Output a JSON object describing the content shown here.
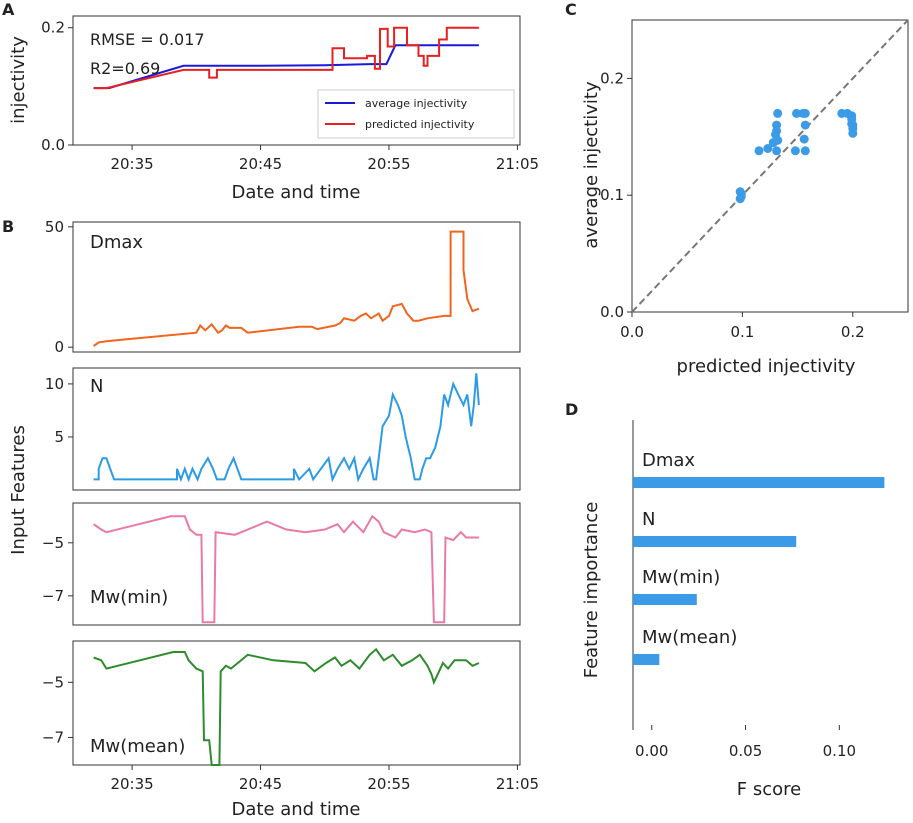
{
  "figure": {
    "panels": [
      "A",
      "B",
      "C",
      "D"
    ]
  },
  "chart_data": [
    {
      "id": "A",
      "type": "line",
      "xlabel": "Date and time",
      "ylabel": "injectivity",
      "x_ticks": [
        "20:35",
        "20:45",
        "20:55",
        "21:05"
      ],
      "xlim_minutes": [
        30.4,
        65.2
      ],
      "ylim": [
        0.0,
        0.22
      ],
      "y_ticks": [
        "0.0",
        "0.2"
      ],
      "annotations": [
        "RMSE = 0.017",
        "R2=0.69"
      ],
      "legend": [
        "average injectivity",
        "predicted injectivity"
      ],
      "series": [
        {
          "name": "average injectivity",
          "color": "#1a1adb",
          "points": [
            [
              32.0,
              0.097
            ],
            [
              33.2,
              0.097
            ],
            [
              39.0,
              0.135
            ],
            [
              45,
              0.135
            ],
            [
              50,
              0.136
            ],
            [
              53.5,
              0.138
            ],
            [
              54.8,
              0.138
            ],
            [
              55.5,
              0.17
            ],
            [
              62.0,
              0.17
            ]
          ]
        },
        {
          "name": "predicted injectivity",
          "color": "#e82020",
          "points": [
            [
              32.0,
              0.097
            ],
            [
              33.0,
              0.097
            ],
            [
              39.0,
              0.128
            ],
            [
              41.0,
              0.128
            ],
            [
              41.0,
              0.115
            ],
            [
              41.6,
              0.115
            ],
            [
              41.6,
              0.128
            ],
            [
              50.6,
              0.128
            ],
            [
              50.6,
              0.165
            ],
            [
              51.5,
              0.165
            ],
            [
              51.5,
              0.148
            ],
            [
              53.3,
              0.148
            ],
            [
              53.3,
              0.152
            ],
            [
              53.9,
              0.152
            ],
            [
              53.9,
              0.13
            ],
            [
              54.3,
              0.13
            ],
            [
              54.3,
              0.198
            ],
            [
              54.9,
              0.198
            ],
            [
              54.9,
              0.168
            ],
            [
              55.4,
              0.168
            ],
            [
              55.4,
              0.2
            ],
            [
              56.4,
              0.2
            ],
            [
              56.4,
              0.17
            ],
            [
              57.3,
              0.17
            ],
            [
              57.3,
              0.152
            ],
            [
              57.7,
              0.152
            ],
            [
              57.7,
              0.135
            ],
            [
              58.0,
              0.135
            ],
            [
              58.0,
              0.152
            ],
            [
              58.9,
              0.152
            ],
            [
              58.9,
              0.18
            ],
            [
              59.5,
              0.18
            ],
            [
              59.5,
              0.2
            ],
            [
              62.0,
              0.2
            ]
          ]
        }
      ]
    },
    {
      "id": "B",
      "type": "line",
      "xlabel": "Date and time",
      "ylabel": "Input Features",
      "x_ticks": [
        "20:35",
        "20:45",
        "20:55",
        "21:05"
      ],
      "xlim_minutes": [
        30.4,
        65.2
      ],
      "subplots": [
        {
          "name": "Dmax",
          "color": "#f0641e",
          "ylim": [
            -2,
            52
          ],
          "y_ticks": [
            "0",
            "50"
          ],
          "points": [
            [
              32.0,
              0.5
            ],
            [
              32.4,
              2
            ],
            [
              33.0,
              2.5
            ],
            [
              40.0,
              6
            ],
            [
              40.3,
              9
            ],
            [
              40.7,
              7
            ],
            [
              41.2,
              9.5
            ],
            [
              41.7,
              6
            ],
            [
              42.0,
              7
            ],
            [
              42.3,
              9
            ],
            [
              42.6,
              8
            ],
            [
              43.5,
              8
            ],
            [
              44.0,
              6
            ],
            [
              48.0,
              8.5
            ],
            [
              49.0,
              8.5
            ],
            [
              49.4,
              7.5
            ],
            [
              50.8,
              9
            ],
            [
              51.2,
              10
            ],
            [
              51.5,
              12
            ],
            [
              52.3,
              11
            ],
            [
              52.8,
              13
            ],
            [
              53.2,
              14
            ],
            [
              53.6,
              12
            ],
            [
              54.2,
              14
            ],
            [
              54.5,
              11
            ],
            [
              55.0,
              13
            ],
            [
              55.3,
              17
            ],
            [
              56.0,
              18
            ],
            [
              56.4,
              14
            ],
            [
              56.9,
              11
            ],
            [
              57.3,
              11
            ],
            [
              58.0,
              12
            ],
            [
              59.3,
              13
            ],
            [
              59.8,
              13
            ],
            [
              59.8,
              48
            ],
            [
              60.8,
              48
            ],
            [
              60.8,
              32
            ],
            [
              61.1,
              20
            ],
            [
              61.5,
              15
            ],
            [
              62.0,
              16
            ]
          ]
        },
        {
          "name": "N",
          "color": "#2c9be6",
          "ylim": [
            0,
            11.5
          ],
          "y_ticks": [
            "5",
            "10"
          ],
          "points": [
            [
              32.0,
              1
            ],
            [
              32.4,
              1
            ],
            [
              32.4,
              2
            ],
            [
              32.7,
              3
            ],
            [
              33.0,
              3
            ],
            [
              33.3,
              2
            ],
            [
              33.6,
              1
            ],
            [
              38.5,
              1
            ],
            [
              38.5,
              2
            ],
            [
              38.8,
              1
            ],
            [
              39.1,
              2
            ],
            [
              39.4,
              1
            ],
            [
              39.7,
              2
            ],
            [
              40.1,
              1
            ],
            [
              40.4,
              2
            ],
            [
              40.9,
              3
            ],
            [
              41.3,
              2
            ],
            [
              41.6,
              1
            ],
            [
              42.2,
              1
            ],
            [
              42.5,
              2
            ],
            [
              42.9,
              3
            ],
            [
              43.2,
              2
            ],
            [
              43.5,
              1
            ],
            [
              47.6,
              1
            ],
            [
              47.6,
              2
            ],
            [
              48.0,
              1
            ],
            [
              48.8,
              2
            ],
            [
              49.1,
              1
            ],
            [
              50.3,
              3
            ],
            [
              50.6,
              1
            ],
            [
              51.0,
              2
            ],
            [
              51.5,
              3
            ],
            [
              51.9,
              2
            ],
            [
              52.3,
              3
            ],
            [
              52.6,
              1
            ],
            [
              53.0,
              2
            ],
            [
              53.5,
              3
            ],
            [
              53.8,
              1
            ],
            [
              54.0,
              1
            ],
            [
              54.2,
              3
            ],
            [
              54.5,
              6
            ],
            [
              55.0,
              7
            ],
            [
              55.3,
              9
            ],
            [
              55.7,
              8
            ],
            [
              56.0,
              7
            ],
            [
              56.3,
              5
            ],
            [
              56.7,
              3
            ],
            [
              57.0,
              1
            ],
            [
              57.4,
              1
            ],
            [
              57.6,
              2
            ],
            [
              57.9,
              3
            ],
            [
              58.2,
              3
            ],
            [
              58.6,
              4
            ],
            [
              59.0,
              6
            ],
            [
              59.3,
              9
            ],
            [
              59.6,
              8
            ],
            [
              60.0,
              10
            ],
            [
              60.4,
              9
            ],
            [
              60.8,
              8
            ],
            [
              61.1,
              9
            ],
            [
              61.4,
              6
            ],
            [
              61.6,
              8
            ],
            [
              61.8,
              11
            ],
            [
              62.0,
              8
            ]
          ]
        },
        {
          "name": "Mw(min)",
          "color": "#e87aa8",
          "ylim": [
            -8.1,
            -3.5
          ],
          "y_ticks": [
            "-5",
            "-7"
          ],
          "points": [
            [
              32.0,
              -4.3
            ],
            [
              32.6,
              -4.5
            ],
            [
              33.0,
              -4.6
            ],
            [
              38.0,
              -4.0
            ],
            [
              39.1,
              -4.0
            ],
            [
              39.5,
              -4.5
            ],
            [
              40.0,
              -4.7
            ],
            [
              40.4,
              -4.7
            ],
            [
              40.5,
              -8.0
            ],
            [
              41.4,
              -8.0
            ],
            [
              41.5,
              -4.6
            ],
            [
              43.0,
              -4.7
            ],
            [
              45.5,
              -4.2
            ],
            [
              47.0,
              -4.5
            ],
            [
              48.5,
              -4.6
            ],
            [
              50.0,
              -4.5
            ],
            [
              51.0,
              -4.3
            ],
            [
              51.5,
              -4.6
            ],
            [
              52.2,
              -4.2
            ],
            [
              53.0,
              -4.6
            ],
            [
              53.7,
              -4.0
            ],
            [
              54.2,
              -4.2
            ],
            [
              54.6,
              -4.6
            ],
            [
              55.5,
              -4.8
            ],
            [
              56.0,
              -4.5
            ],
            [
              57.0,
              -4.6
            ],
            [
              57.8,
              -4.5
            ],
            [
              58.3,
              -4.6
            ],
            [
              58.5,
              -8.0
            ],
            [
              59.3,
              -8.0
            ],
            [
              59.4,
              -4.8
            ],
            [
              60.0,
              -4.9
            ],
            [
              60.6,
              -4.6
            ],
            [
              61.0,
              -4.8
            ],
            [
              62.0,
              -4.8
            ]
          ]
        },
        {
          "name": "Mw(mean)",
          "color": "#2e8b2e",
          "ylim": [
            -8.0,
            -3.5
          ],
          "y_ticks": [
            "-5",
            "-7"
          ],
          "points": [
            [
              32.0,
              -4.1
            ],
            [
              32.6,
              -4.2
            ],
            [
              33.0,
              -4.5
            ],
            [
              38.2,
              -3.9
            ],
            [
              39.1,
              -3.9
            ],
            [
              39.4,
              -4.2
            ],
            [
              40.0,
              -4.5
            ],
            [
              40.5,
              -4.6
            ],
            [
              40.6,
              -7.1
            ],
            [
              41.0,
              -7.1
            ],
            [
              41.2,
              -8.0
            ],
            [
              41.8,
              -8.0
            ],
            [
              41.9,
              -4.6
            ],
            [
              42.3,
              -4.4
            ],
            [
              42.7,
              -4.5
            ],
            [
              44.0,
              -4.0
            ],
            [
              46.0,
              -4.2
            ],
            [
              48.5,
              -4.3
            ],
            [
              49.2,
              -4.6
            ],
            [
              50.1,
              -4.3
            ],
            [
              50.8,
              -4.1
            ],
            [
              51.3,
              -4.4
            ],
            [
              52.0,
              -4.2
            ],
            [
              52.7,
              -4.5
            ],
            [
              53.5,
              -4.0
            ],
            [
              54.0,
              -3.8
            ],
            [
              54.6,
              -4.2
            ],
            [
              55.3,
              -4.0
            ],
            [
              56.0,
              -4.4
            ],
            [
              56.8,
              -4.2
            ],
            [
              57.4,
              -4.0
            ],
            [
              58.0,
              -4.4
            ],
            [
              58.3,
              -4.7
            ],
            [
              58.5,
              -5.0
            ],
            [
              58.9,
              -4.6
            ],
            [
              59.2,
              -4.3
            ],
            [
              59.6,
              -4.5
            ],
            [
              60.1,
              -4.2
            ],
            [
              61.0,
              -4.2
            ],
            [
              61.5,
              -4.4
            ],
            [
              62.0,
              -4.3
            ]
          ]
        }
      ]
    },
    {
      "id": "C",
      "type": "scatter",
      "xlabel": "predicted injectivity",
      "ylabel": "average  injectivity",
      "xlim": [
        0.0,
        0.25
      ],
      "ylim": [
        0.0,
        0.25
      ],
      "x_ticks": [
        "0.0",
        "0.1",
        "0.2"
      ],
      "y_ticks": [
        "0.0",
        "0.1",
        "0.2"
      ],
      "identity_line": true,
      "color": "#3c9be6",
      "points": [
        [
          0.098,
          0.097
        ],
        [
          0.099,
          0.099
        ],
        [
          0.099,
          0.101
        ],
        [
          0.098,
          0.103
        ],
        [
          0.115,
          0.138
        ],
        [
          0.123,
          0.14
        ],
        [
          0.128,
          0.145
        ],
        [
          0.13,
          0.152
        ],
        [
          0.132,
          0.147
        ],
        [
          0.131,
          0.138
        ],
        [
          0.131,
          0.16
        ],
        [
          0.132,
          0.17
        ],
        [
          0.131,
          0.155
        ],
        [
          0.148,
          0.138
        ],
        [
          0.149,
          0.17
        ],
        [
          0.155,
          0.17
        ],
        [
          0.157,
          0.16
        ],
        [
          0.156,
          0.148
        ],
        [
          0.157,
          0.138
        ],
        [
          0.157,
          0.17
        ],
        [
          0.19,
          0.17
        ],
        [
          0.195,
          0.17
        ],
        [
          0.199,
          0.165
        ],
        [
          0.199,
          0.161
        ],
        [
          0.2,
          0.157
        ],
        [
          0.2,
          0.153
        ],
        [
          0.199,
          0.168
        ],
        [
          0.2,
          0.16
        ]
      ]
    },
    {
      "id": "D",
      "type": "bar",
      "orientation": "horizontal",
      "xlabel": "F score",
      "ylabel": "Feature importance",
      "xlim": [
        -0.01,
        0.135
      ],
      "x_ticks": [
        "0.00",
        "0.05",
        "0.10"
      ],
      "color": "#3c9be6",
      "categories": [
        "Dmax",
        "N",
        "Mw(min)",
        "Mw(mean)"
      ],
      "values": [
        0.124,
        0.077,
        0.024,
        0.004
      ]
    }
  ]
}
